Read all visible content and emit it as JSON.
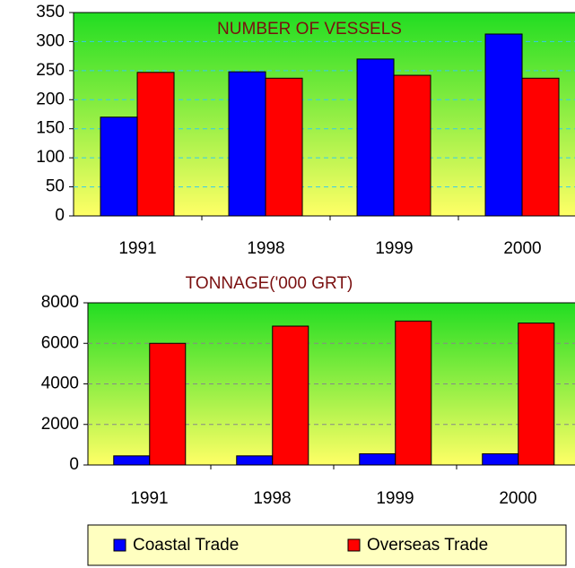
{
  "chart_data": [
    {
      "type": "bar",
      "title": "NUMBER OF VESSELS",
      "categories": [
        "1991",
        "1998",
        "1999",
        "2000"
      ],
      "series": [
        {
          "name": "Coastal Trade",
          "color": "#0000ff",
          "values": [
            170,
            248,
            270,
            313
          ]
        },
        {
          "name": "Overseas Trade",
          "color": "#ff0000",
          "values": [
            247,
            237,
            242,
            237
          ]
        }
      ],
      "ylim": [
        0,
        350
      ],
      "yticks": [
        0,
        50,
        100,
        150,
        200,
        250,
        300,
        350
      ],
      "grid": true
    },
    {
      "type": "bar",
      "title": "TONNAGE('000 GRT)",
      "categories": [
        "1991",
        "1998",
        "1999",
        "2000"
      ],
      "series": [
        {
          "color": "#0000ff",
          "values": [
            450,
            450,
            550,
            550
          ]
        },
        {
          "color": "#ff0000",
          "values": [
            6000,
            6850,
            7100,
            7000
          ]
        }
      ],
      "ylim": [
        0,
        8000
      ],
      "yticks": [
        0,
        2000,
        4000,
        6000,
        8000
      ],
      "grid": true
    }
  ]
}
